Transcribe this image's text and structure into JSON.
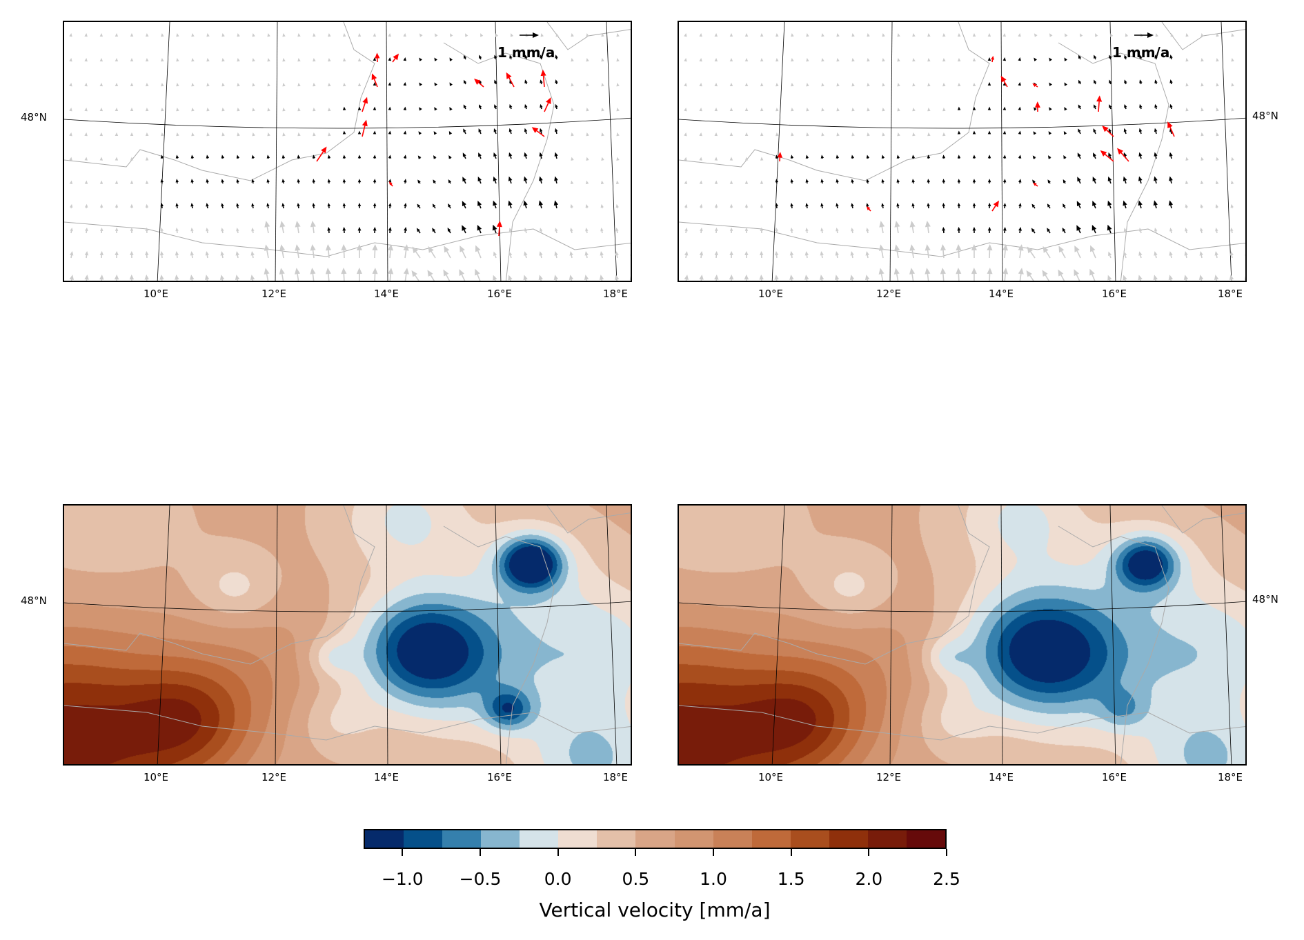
{
  "figure": {
    "panels": [
      {
        "id": "velocity-horizontal-a",
        "type": "vector",
        "reference_arrow_label": "1 mm/a"
      },
      {
        "id": "velocity-horizontal-b",
        "type": "vector",
        "reference_arrow_label": "1 mm/a"
      },
      {
        "id": "velocity-vertical-a",
        "type": "contour"
      },
      {
        "id": "velocity-vertical-b",
        "type": "contour"
      }
    ],
    "lon_ticks": [
      "10°E",
      "12°E",
      "14°E",
      "16°E",
      "18°E"
    ],
    "lat_tick": "48°N",
    "arrow_colors": {
      "background": "#cccccc",
      "stations": "#000000",
      "highlight": "#ff0000"
    }
  },
  "colorbar": {
    "label": "Vertical velocity [mm/a]",
    "tick_labels": [
      "−1.0",
      "−0.5",
      "0.0",
      "0.5",
      "1.0",
      "1.5",
      "2.0",
      "2.5"
    ],
    "levels": [
      -1.25,
      -1.0,
      -0.75,
      -0.5,
      -0.25,
      0.0,
      0.25,
      0.5,
      0.75,
      1.0,
      1.25,
      1.5,
      1.75,
      2.0,
      2.25,
      2.5
    ],
    "colors": [
      "#052a6b",
      "#05508a",
      "#3580ad",
      "#87b6cf",
      "#d5e3e9",
      "#efddd1",
      "#e4c0a9",
      "#d9a587",
      "#d29571",
      "#c98158",
      "#bf6a3a",
      "#a94e1e",
      "#8f300b",
      "#781c0a",
      "#660a0a"
    ]
  }
}
